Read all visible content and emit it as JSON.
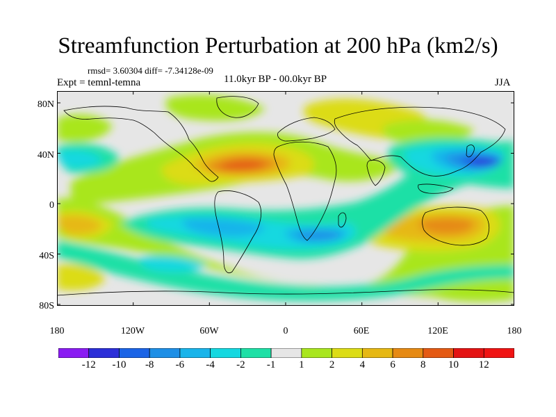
{
  "title": "Streamfunction Perturbation at 200 hPa (km2/s)",
  "stats": "rmsd= 3.60304 diff= -7.34128e-09",
  "experiment": "Expt = temnl-temna",
  "period": "11.0kyr BP - 00.0kyr BP",
  "season": "JJA",
  "lat_labels": [
    "80N",
    "40N",
    "0",
    "40S",
    "80S"
  ],
  "lon_labels": [
    "180",
    "120W",
    "60W",
    "0",
    "60E",
    "120E",
    "180"
  ],
  "colorbar": {
    "labels": [
      "-12",
      "-10",
      "-8",
      "-6",
      "-4",
      "-2",
      "-1",
      "1",
      "2",
      "4",
      "6",
      "8",
      "10",
      "12"
    ],
    "colors": [
      "#8a1cf2",
      "#2c2fd8",
      "#1b64e6",
      "#1e8fe6",
      "#19b4ea",
      "#15d8e0",
      "#1ee0a6",
      "#e6e6e6",
      "#a9e61f",
      "#dcdc16",
      "#e6b814",
      "#e68a14",
      "#e45a14",
      "#e41414",
      "#f01414"
    ]
  },
  "map_colors": {
    "neutral": "#e6e6e6",
    "pos1": "#a9e61f",
    "pos2": "#dcdc16",
    "pos3": "#e6b814",
    "pos4": "#e68a14",
    "pos5": "#e45a14",
    "neg1": "#1ee0a6",
    "neg2": "#15d8e0",
    "neg3": "#19b4ea",
    "neg4": "#1e8fe6",
    "neg5": "#1b64e6",
    "neg6": "#2c2fd8"
  }
}
